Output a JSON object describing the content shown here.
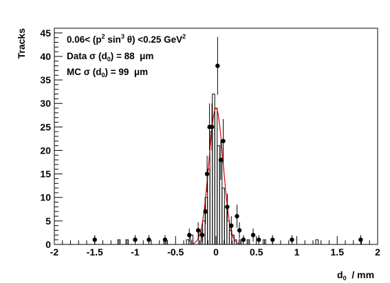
{
  "chart_data": {
    "type": "scatter",
    "xlabel": {
      "main": "d",
      "sub": "0",
      "unit": "  / mm"
    },
    "ylabel": "Tracks",
    "xlim": [
      -2,
      2
    ],
    "ylim": [
      0,
      46
    ],
    "x_ticks": [
      -2,
      -1.5,
      -1,
      -0.5,
      0,
      0.5,
      1,
      1.5,
      2
    ],
    "x_tick_labels": [
      "-2",
      "-1.5",
      "-1",
      "-0.5",
      "0",
      "0.5",
      "1",
      "1.5",
      "2"
    ],
    "y_ticks": [
      0,
      5,
      10,
      15,
      20,
      25,
      30,
      35,
      40,
      45
    ],
    "y_tick_labels": [
      "0",
      "5",
      "10",
      "15",
      "20",
      "25",
      "30",
      "35",
      "40",
      "45"
    ],
    "annotations": {
      "line1": {
        "a": "0.06< (p",
        "b": "2",
        "c": " sin",
        "d": "3",
        "e": " θ) <0.25 GeV",
        "f": "2"
      },
      "line2": {
        "a": "Data σ (d",
        "b": "0",
        "c": ") = 88  μm"
      },
      "line3": {
        "a": "MC σ (d",
        "b": "0",
        "c": ") = 99  μm"
      }
    },
    "series": [
      {
        "kind": "points",
        "style": "black filled markers with error bars",
        "x": [
          -1.5,
          -1.0,
          -0.83,
          -0.63,
          -0.33,
          -0.22,
          -0.17,
          -0.13,
          -0.11,
          -0.08,
          -0.05,
          0.02,
          0.06,
          0.09,
          0.14,
          0.19,
          0.26,
          0.29,
          0.34,
          0.46,
          0.53,
          0.7,
          0.94,
          1.79
        ],
        "y": [
          1,
          1,
          1,
          1,
          2,
          3,
          2,
          7,
          15,
          25,
          25,
          38,
          18,
          22,
          8,
          4,
          6,
          3,
          1,
          2,
          1,
          1,
          1,
          1
        ]
      },
      {
        "kind": "histogram",
        "style": "black step outline (MC)",
        "x": [
          -1.2,
          -1.1,
          -0.63,
          -0.35,
          -0.3,
          -0.2,
          -0.15,
          -0.12,
          -0.09,
          -0.06,
          -0.03,
          0.0,
          0.03,
          0.06,
          0.09,
          0.12,
          0.15,
          0.18,
          0.21,
          0.24,
          0.3,
          0.4,
          0.6,
          1.25
        ],
        "y": [
          1,
          1,
          1,
          1,
          2,
          3,
          5,
          10,
          16,
          24,
          32,
          29,
          21,
          18,
          12,
          8,
          5,
          3,
          2,
          1,
          1,
          1,
          1,
          1
        ]
      },
      {
        "kind": "fit",
        "style": "red gaussian curve",
        "amplitude": 29,
        "mean": 0.0,
        "sigma": 0.088
      }
    ]
  }
}
